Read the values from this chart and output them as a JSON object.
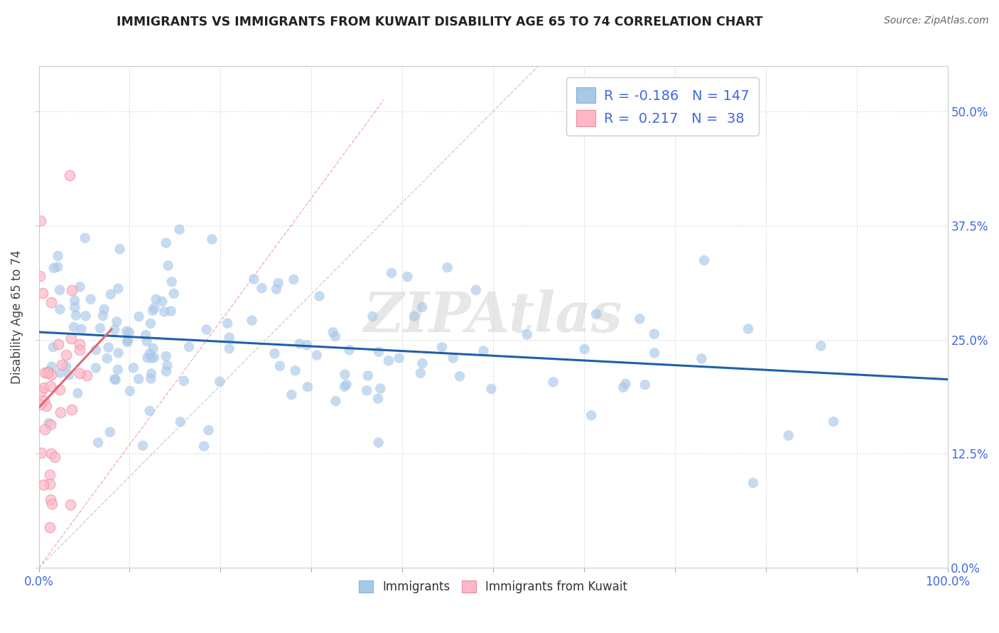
{
  "title": "IMMIGRANTS VS IMMIGRANTS FROM KUWAIT DISABILITY AGE 65 TO 74 CORRELATION CHART",
  "source": "Source: ZipAtlas.com",
  "ylabel": "Disability Age 65 to 74",
  "watermark": "ZIPAtlas",
  "legend_labels": [
    "Immigrants",
    "Immigrants from Kuwait"
  ],
  "r_values": [
    -0.186,
    0.217
  ],
  "n_values": [
    147,
    38
  ],
  "blue_scatter_color": "#a8c8e8",
  "pink_scatter_color": "#ffb6c8",
  "pink_scatter_edge": "#e8909a",
  "blue_line_color": "#2060a8",
  "pink_line_color": "#e06878",
  "diag_color": "#cccccc",
  "diag_pink_color": "#f0a0a8",
  "title_color": "#222222",
  "axis_tick_color": "#4169e1",
  "right_tick_color": "#4169e1",
  "legend_text_color": "#4169e1",
  "background_color": "#ffffff",
  "grid_color": "#e0e0e0",
  "seed": 99,
  "xmin": 0.0,
  "xmax": 1.0,
  "ymin": 0.0,
  "ymax": 0.55,
  "yticks": [
    0.0,
    0.125,
    0.25,
    0.375,
    0.5
  ],
  "ytick_labels": [
    "",
    "12.5%",
    "25.0%",
    "37.5%",
    "50.0%"
  ],
  "right_ytick_labels": [
    "0.0%",
    "12.5%",
    "25.0%",
    "37.5%",
    "50.0%"
  ],
  "xticks": [
    0.0,
    0.1,
    0.2,
    0.3,
    0.4,
    0.5,
    0.6,
    0.7,
    0.8,
    0.9,
    1.0
  ],
  "xtick_labels": [
    "0.0%",
    "",
    "",
    "",
    "",
    "",
    "",
    "",
    "",
    "",
    "100.0%"
  ]
}
